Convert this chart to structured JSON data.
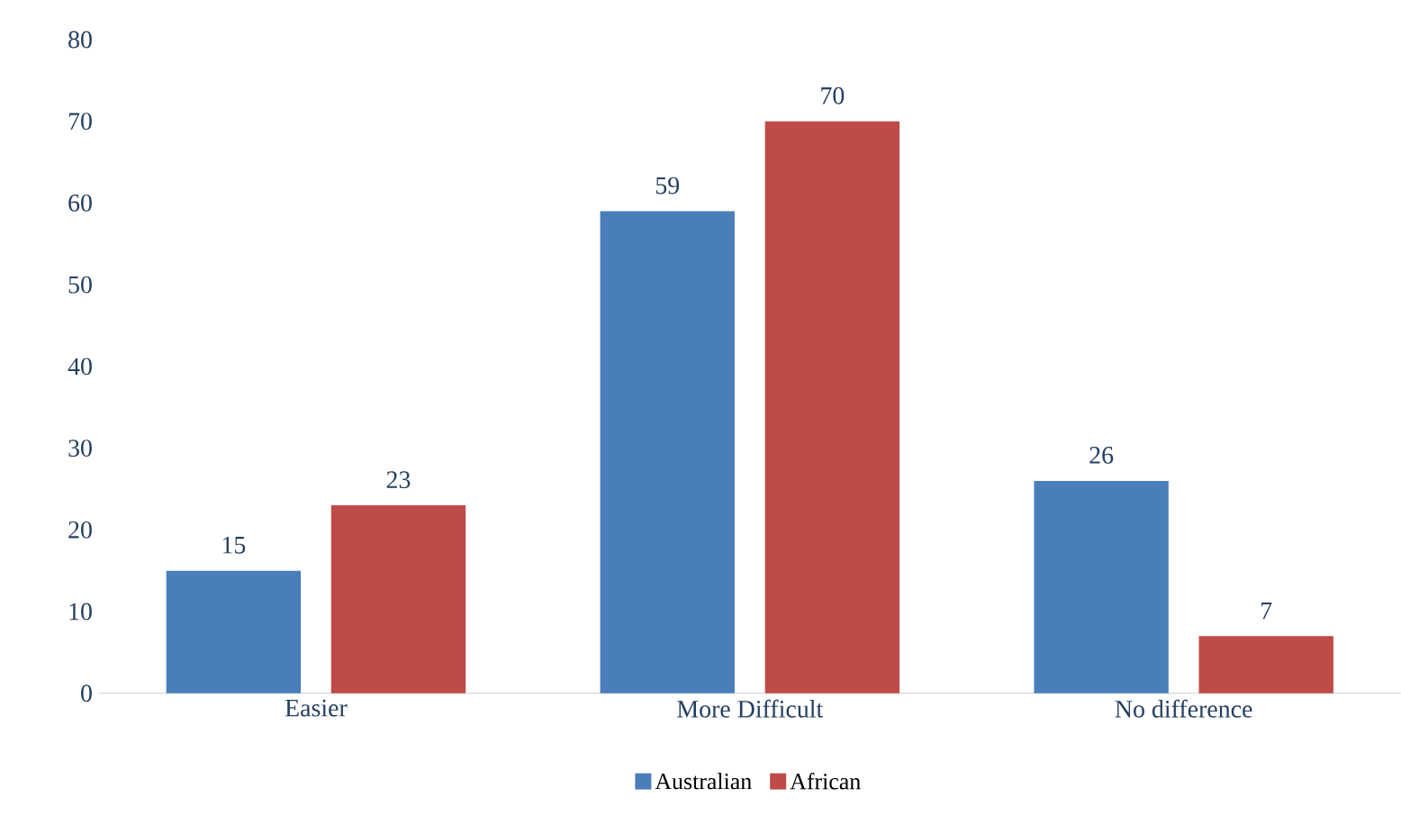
{
  "chart_data": {
    "type": "bar",
    "categories": [
      "Easier",
      "More Difficult",
      "No difference"
    ],
    "series": [
      {
        "name": "Australian",
        "color": "#4a7ebb",
        "values": [
          15,
          59,
          26
        ]
      },
      {
        "name": "African",
        "color": "#be4b48",
        "values": [
          23,
          70,
          7
        ]
      }
    ],
    "ylim": [
      0,
      80
    ],
    "yticks": [
      0,
      10,
      20,
      30,
      40,
      50,
      60,
      70,
      80
    ],
    "data_labels": true,
    "legend": "bottom",
    "grid": false
  }
}
